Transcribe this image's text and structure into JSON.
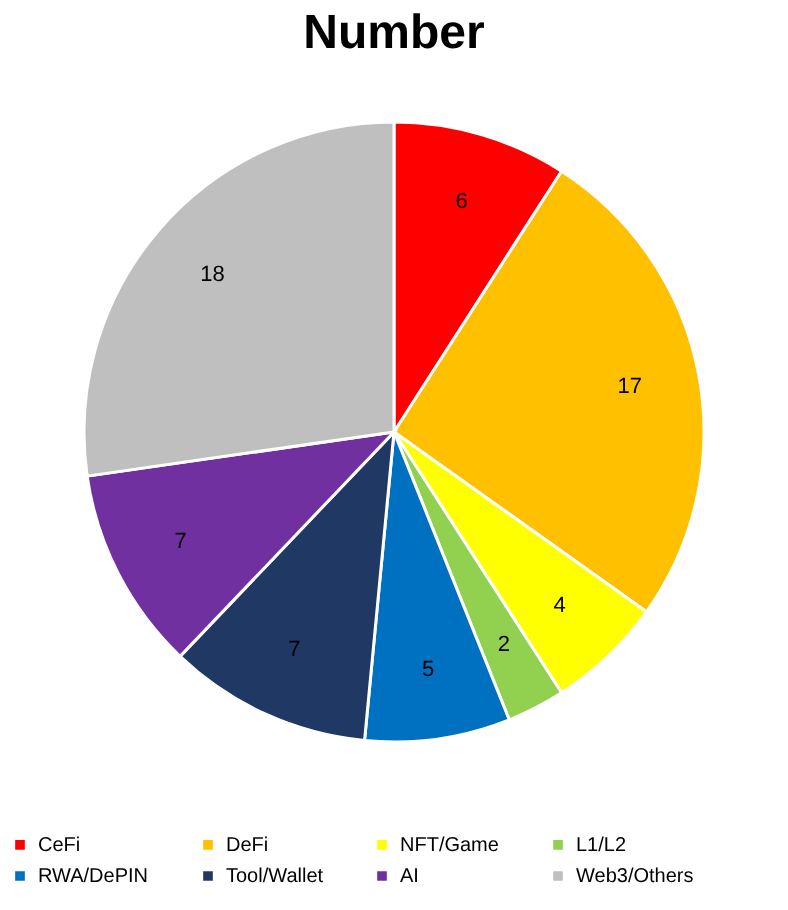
{
  "chart_data": {
    "type": "pie",
    "title": "Number",
    "categories": [
      "CeFi",
      "DeFi",
      "NFT/Game",
      "L1/L2",
      "RWA/DePIN",
      "Tool/Wallet",
      "AI",
      "Web3/Others"
    ],
    "values": [
      6,
      17,
      4,
      2,
      5,
      7,
      7,
      18
    ],
    "colors": [
      "#ff0000",
      "#ffc000",
      "#ffff00",
      "#92d050",
      "#0070c0",
      "#1f3864",
      "#7030a0",
      "#bfbfbf"
    ],
    "data_labels": true,
    "legend": "bottom"
  }
}
